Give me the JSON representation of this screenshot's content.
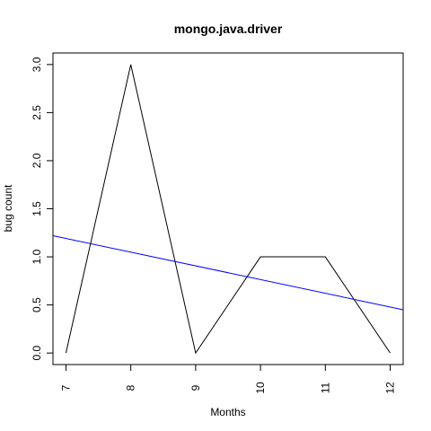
{
  "chart_data": {
    "type": "line",
    "title": "mongo.java.driver",
    "xlabel": "Months",
    "ylabel": "bug count",
    "x": [
      7,
      8,
      9,
      10,
      11,
      12
    ],
    "xlim": [
      6.8,
      12.2
    ],
    "ylim": [
      -0.12,
      3.12
    ],
    "x_ticks": [
      "7",
      "8",
      "9",
      "10",
      "11",
      "12"
    ],
    "y_ticks": [
      "0.0",
      "0.5",
      "1.0",
      "1.5",
      "2.0",
      "2.5",
      "3.0"
    ],
    "grid": false,
    "legend": "none",
    "series": [
      {
        "values": [
          0,
          3,
          0,
          1,
          1,
          0
        ],
        "color": "#000000",
        "style": "line"
      }
    ],
    "trendline": {
      "x_start": 6.8,
      "y_start": 1.22,
      "x_end": 12.2,
      "y_end": 0.45,
      "color": "#0000ff"
    }
  }
}
